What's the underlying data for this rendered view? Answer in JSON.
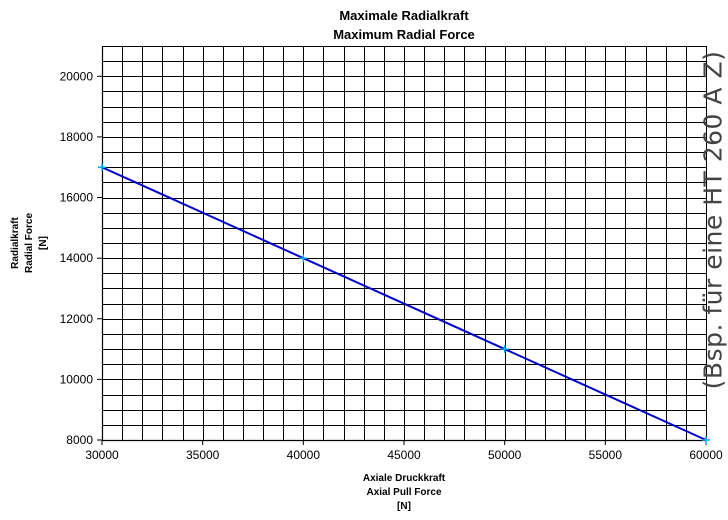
{
  "chart_data": {
    "type": "line",
    "title": "Maximale Radialkraft",
    "subtitle": "Maximum Radial Force",
    "xlabel_lines": [
      "Axiale Druckkraft",
      "Axial Pull Force",
      "[N]"
    ],
    "ylabel_lines": [
      "Radialkraft",
      "Radial Force",
      "[N]"
    ],
    "xlim": [
      30000,
      60000
    ],
    "ylim": [
      8000,
      21000
    ],
    "x_ticks": [
      30000,
      35000,
      40000,
      45000,
      50000,
      55000,
      60000
    ],
    "y_ticks": [
      8000,
      10000,
      12000,
      14000,
      16000,
      18000,
      20000
    ],
    "x_tick_labels": [
      "30000",
      "35000",
      "40000",
      "45000",
      "50000",
      "55000",
      "60000"
    ],
    "y_tick_labels": [
      "8000",
      "10000",
      "12000",
      "14000",
      "16000",
      "18000",
      "20000"
    ],
    "x_minor_step": 1000,
    "y_minor_step": 500,
    "grid": true,
    "series": [
      {
        "x": [
          30000,
          40000,
          50000,
          60000
        ],
        "y": [
          17000,
          14000,
          11000,
          8000
        ],
        "color": "#0000cc",
        "marker_color": "#00b0f0"
      }
    ],
    "annotation": "(Bsp. für eine HT 260 A Z)"
  }
}
